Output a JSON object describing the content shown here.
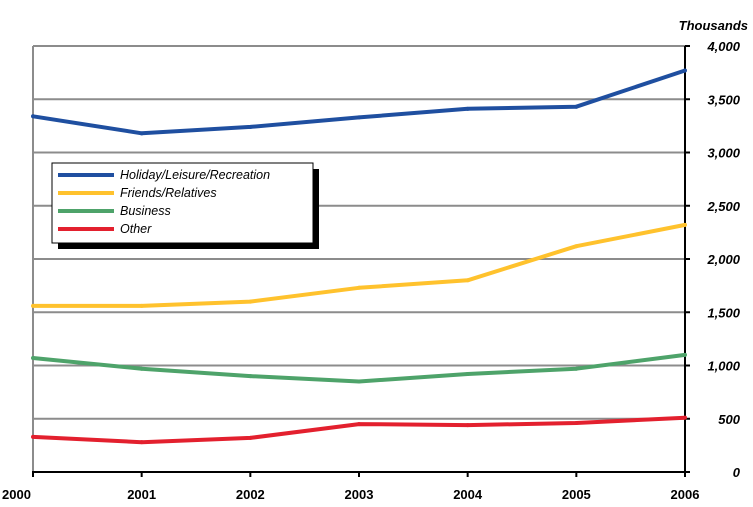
{
  "chart_data": {
    "type": "line",
    "title": "",
    "xlabel": "",
    "ylabel": "Thousands",
    "categories": [
      "2000",
      "2001",
      "2002",
      "2003",
      "2004",
      "2005",
      "2006"
    ],
    "ylim": [
      0,
      4000
    ],
    "yticks": [
      0,
      500,
      1000,
      1500,
      2000,
      2500,
      3000,
      3500,
      4000
    ],
    "ytick_labels": [
      "0",
      "500",
      "1,000",
      "1,500",
      "2,000",
      "2,500",
      "3,000",
      "3,500",
      "4,000"
    ],
    "grid": true,
    "legend_position": "upper-left",
    "series": [
      {
        "name": "Holiday/Leisure/Recreation",
        "color": "#1f4fa0",
        "values": [
          3340,
          3180,
          3240,
          3330,
          3410,
          3430,
          3770
        ]
      },
      {
        "name": "Friends/Relatives",
        "color": "#ffc22d",
        "values": [
          1560,
          1560,
          1600,
          1730,
          1800,
          2120,
          2320
        ]
      },
      {
        "name": "Business",
        "color": "#4ea36a",
        "values": [
          1070,
          970,
          900,
          850,
          920,
          970,
          1100
        ]
      },
      {
        "name": "Other",
        "color": "#e3202e",
        "values": [
          330,
          280,
          320,
          450,
          440,
          460,
          510
        ]
      }
    ]
  }
}
